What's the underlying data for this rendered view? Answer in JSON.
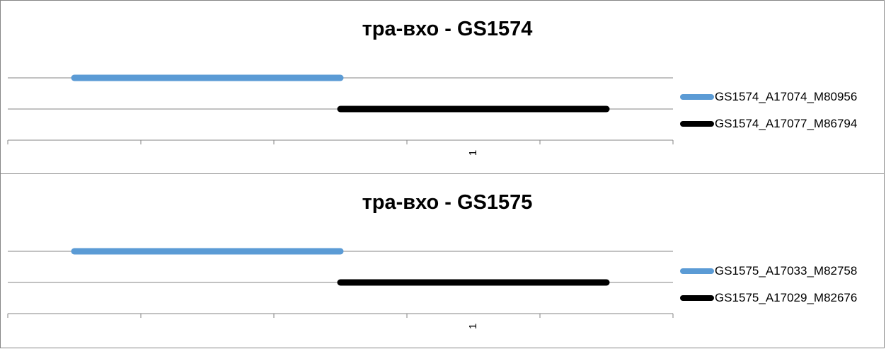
{
  "chart_data": [
    {
      "type": "line",
      "title": "тра-вхо - GS1574",
      "categories": [
        "",
        "",
        "",
        "1",
        ""
      ],
      "series": [
        {
          "name": "GS1574_A17074_M80956",
          "color": "#5B9BD5",
          "values": [
            2,
            2,
            2,
            null,
            null
          ]
        },
        {
          "name": "GS1574_A17077_M86794",
          "color": "#000000",
          "values": [
            null,
            null,
            1,
            1,
            1
          ]
        }
      ],
      "ylim": [
        0,
        2
      ],
      "grid": true,
      "legend": "right"
    },
    {
      "type": "line",
      "title": "тра-вхо - GS1575",
      "categories": [
        "",
        "",
        "",
        "1",
        ""
      ],
      "series": [
        {
          "name": "GS1575_A17033_M82758",
          "color": "#5B9BD5",
          "values": [
            2,
            2,
            2,
            null,
            null
          ]
        },
        {
          "name": "GS1575_A17029_M82676",
          "color": "#000000",
          "values": [
            null,
            null,
            1,
            1,
            1
          ]
        }
      ],
      "ylim": [
        0,
        2
      ],
      "grid": true,
      "legend": "right"
    }
  ]
}
